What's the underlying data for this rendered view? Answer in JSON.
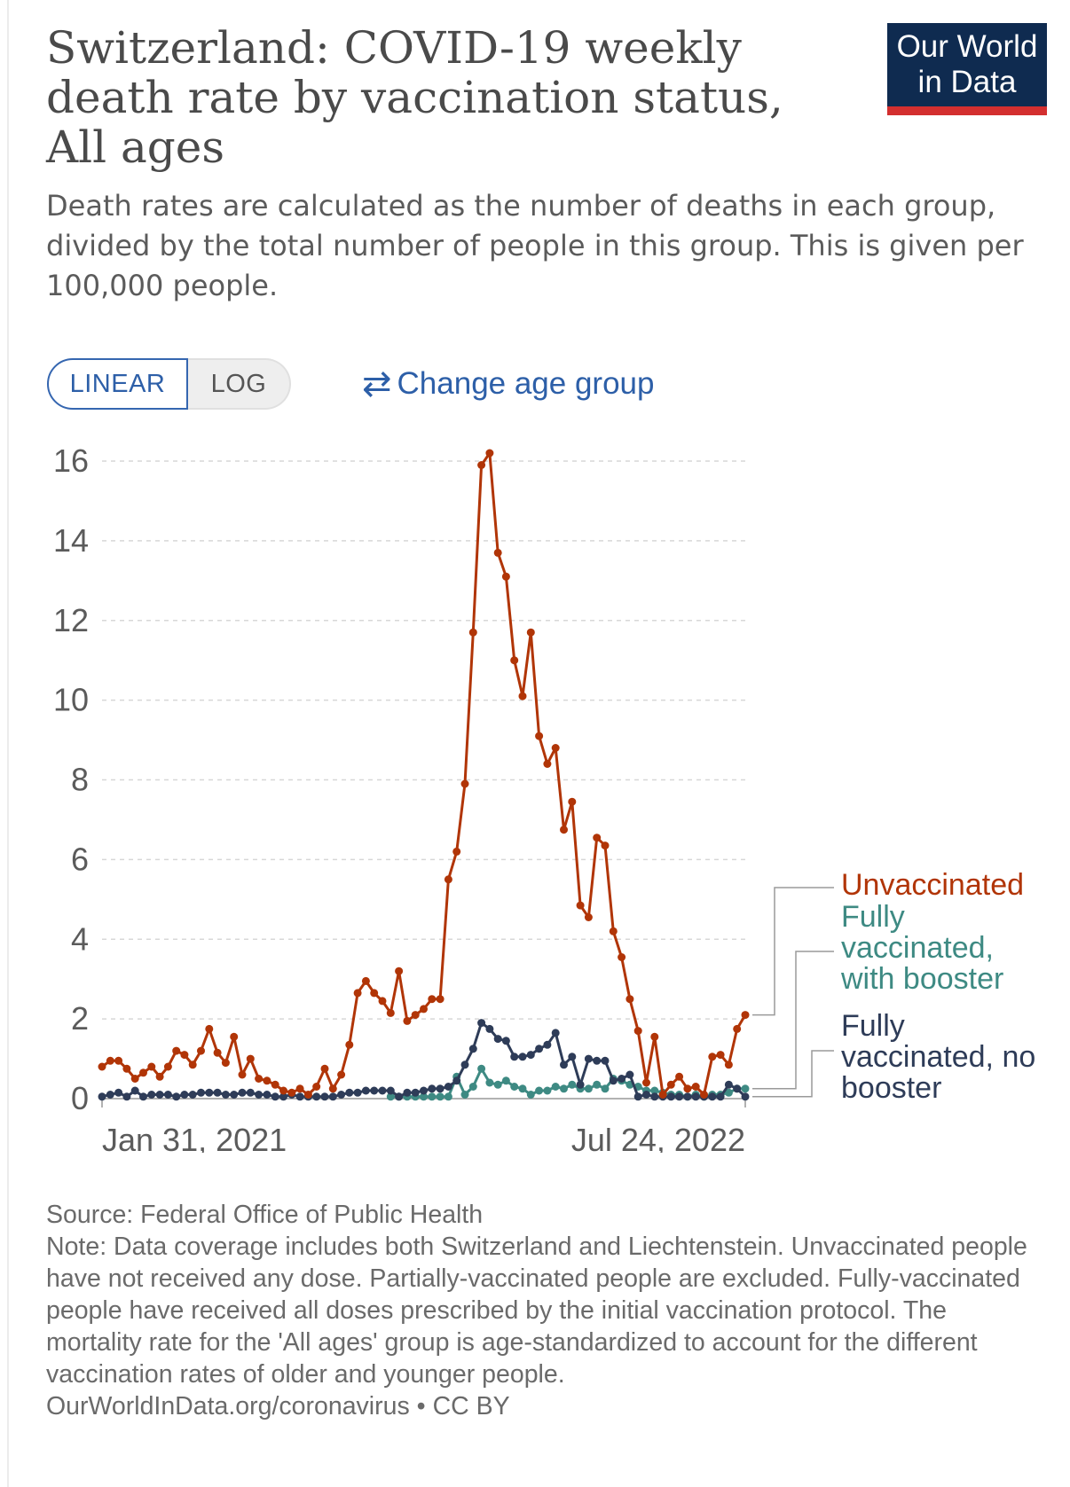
{
  "header": {
    "title": "Switzerland: COVID-19 weekly death rate by vaccination status, All ages",
    "subtitle": "Death rates are calculated as the number of deaths in each group, divided by the total number of people in this group. This is given per 100,000 people.",
    "logo_line1": "Our World",
    "logo_line2": "in Data"
  },
  "controls": {
    "linear_label": "LINEAR",
    "log_label": "LOG",
    "change_age_label": "Change age group"
  },
  "colors": {
    "unvaccinated": "#b13507",
    "boosted": "#3e8a83",
    "no_booster": "#2e3c58",
    "grid": "#d7d7d7"
  },
  "chart_data": {
    "type": "line",
    "ylim": [
      0,
      16
    ],
    "y_ticks": [
      0,
      2,
      4,
      6,
      8,
      10,
      12,
      14,
      16
    ],
    "x_tick_labels": [
      "Jan 31, 2021",
      "Jul 24, 2022"
    ],
    "grid": "horizontal dashed",
    "legend_position": "right, labels at line ends",
    "series": [
      {
        "name": "Unvaccinated",
        "color_key": "unvaccinated",
        "start_index": 0,
        "values": [
          0.8,
          0.95,
          0.95,
          0.75,
          0.5,
          0.65,
          0.8,
          0.55,
          0.8,
          1.2,
          1.1,
          0.85,
          1.2,
          1.75,
          1.15,
          0.9,
          1.55,
          0.6,
          1.0,
          0.5,
          0.45,
          0.35,
          0.2,
          0.15,
          0.25,
          0.1,
          0.3,
          0.75,
          0.25,
          0.6,
          1.35,
          2.65,
          2.95,
          2.65,
          2.45,
          2.15,
          3.2,
          1.95,
          2.1,
          2.25,
          2.5,
          2.5,
          5.5,
          6.2,
          7.9,
          11.7,
          15.9,
          16.2,
          13.7,
          13.1,
          11.0,
          10.1,
          11.7,
          9.1,
          8.4,
          8.8,
          6.75,
          7.45,
          4.85,
          4.55,
          6.55,
          6.35,
          4.2,
          3.55,
          2.5,
          1.7,
          0.4,
          1.55,
          0.1,
          0.35,
          0.55,
          0.25,
          0.3,
          0.1,
          1.05,
          1.1,
          0.85,
          1.75,
          2.1
        ]
      },
      {
        "name": "Fully vaccinated, with booster",
        "color_key": "boosted",
        "start_index": 35,
        "values": [
          0.05,
          0.05,
          0.05,
          0.05,
          0.05,
          0.05,
          0.05,
          0.05,
          0.55,
          0.1,
          0.3,
          0.75,
          0.4,
          0.35,
          0.45,
          0.3,
          0.25,
          0.1,
          0.2,
          0.2,
          0.3,
          0.25,
          0.35,
          0.25,
          0.25,
          0.35,
          0.25,
          0.5,
          0.45,
          0.35,
          0.3,
          0.2,
          0.2,
          0.15,
          0.1,
          0.1,
          0.05,
          0.1,
          0.05,
          0.1,
          0.1,
          0.15,
          0.25,
          0.25
        ]
      },
      {
        "name": "Fully vaccinated, no booster",
        "color_key": "no_booster",
        "start_index": 0,
        "values": [
          0.05,
          0.1,
          0.15,
          0.05,
          0.2,
          0.05,
          0.1,
          0.1,
          0.1,
          0.05,
          0.1,
          0.1,
          0.15,
          0.15,
          0.15,
          0.1,
          0.1,
          0.15,
          0.15,
          0.1,
          0.1,
          0.05,
          0.05,
          0.1,
          0.05,
          0.05,
          0.05,
          0.05,
          0.05,
          0.1,
          0.15,
          0.15,
          0.2,
          0.2,
          0.2,
          0.2,
          0.05,
          0.15,
          0.15,
          0.2,
          0.25,
          0.25,
          0.3,
          0.45,
          0.85,
          1.25,
          1.9,
          1.75,
          1.5,
          1.45,
          1.05,
          1.05,
          1.1,
          1.25,
          1.35,
          1.65,
          0.85,
          1.05,
          0.35,
          1.0,
          0.95,
          0.95,
          0.45,
          0.5,
          0.6,
          0.05,
          0.1,
          0.05,
          0.05,
          0.05,
          0.05,
          0.05,
          0.05,
          0.05,
          0.05,
          0.05,
          0.35,
          0.25,
          0.05
        ]
      }
    ]
  },
  "footer": {
    "source": "Source: Federal Office of Public Health",
    "note": "Note: Data coverage includes both Switzerland and Liechtenstein. Unvaccinated people have not received any dose. Partially-vaccinated people are excluded. Fully-vaccinated people have received all doses prescribed by the initial vaccination protocol. The mortality rate for the 'All ages' group is age-standardized to account for the different vaccination rates of older and younger people.",
    "url": "OurWorldInData.org/coronavirus",
    "bullet": "•",
    "license": "CC BY"
  }
}
